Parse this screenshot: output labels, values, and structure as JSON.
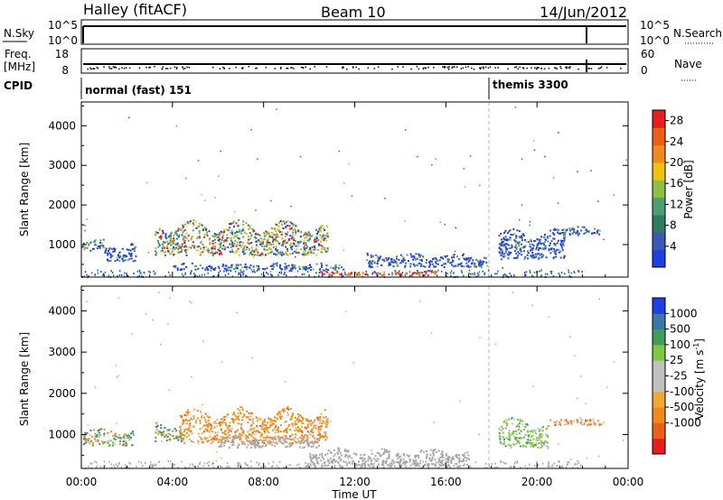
{
  "header": {
    "station": "Halley (fitACF)",
    "beam": "Beam 10",
    "date": "14/Jun/2012"
  },
  "top_panels": {
    "nsky_label": "N.Sky",
    "nsky_ticks": [
      "10^5",
      "10^0"
    ],
    "nsearch_label": "N.Search",
    "nsearch_ticks": [
      "10^5",
      "10^0"
    ],
    "freq_label_1": "Freq.",
    "freq_label_2": "[MHz]",
    "freq_ticks": [
      "18",
      "8"
    ],
    "nave_label": "Nave",
    "nave_ticks": [
      "60",
      "0"
    ],
    "cpid_label": "CPID",
    "cpid_1": "normal (fast) 151",
    "cpid_2": "themis 3300"
  },
  "colors": {
    "power": [
      "#1e3ee8",
      "#3a58b8",
      "#2f7b62",
      "#4f9e72",
      "#8ec044",
      "#f0c20c",
      "#f08a1c",
      "#ee5f16",
      "#e81d1d"
    ],
    "velocity": [
      "#e81d1d",
      "#ee5f16",
      "#f08a1c",
      "#f0a830",
      "#c0c0c0",
      "#c0c0c0",
      "#7ec844",
      "#3f9e5a",
      "#3a78a8",
      "#1e3ee8"
    ],
    "ground_scatter": "#a8a8a8"
  },
  "chart_data": [
    {
      "type": "heatmap",
      "name": "Power",
      "ylabel": "Slant Range [km]",
      "xlabel": "Time UT",
      "xlim_hours": [
        0,
        24
      ],
      "ylim": [
        180,
        4600
      ],
      "yticks": [
        "1000",
        "2000",
        "3000",
        "4000"
      ],
      "xticks": [
        "00:00",
        "04:00",
        "08:00",
        "12:00",
        "16:00",
        "20:00",
        "00:00"
      ],
      "colorbar_label": "Power [dB]",
      "colorbar_ticks": [
        "4",
        "8",
        "12",
        "16",
        "20",
        "24",
        "28"
      ],
      "colorbar_range": [
        0,
        30
      ],
      "marker_time_hours": 18.1,
      "regions": [
        {
          "t0": 0.0,
          "t1": 1.0,
          "r0": 850,
          "r1": 1180,
          "level": "mixed"
        },
        {
          "t0": 1.0,
          "t1": 2.4,
          "r0": 600,
          "r1": 1100,
          "level": "low"
        },
        {
          "t0": 3.2,
          "t1": 10.8,
          "r0": 750,
          "r1": 1650,
          "level": "high"
        },
        {
          "t0": 4.0,
          "t1": 11.5,
          "r0": 380,
          "r1": 560,
          "level": "low"
        },
        {
          "t0": 10.5,
          "t1": 15.5,
          "r0": 240,
          "r1": 360,
          "level": "strong"
        },
        {
          "t0": 12.5,
          "t1": 17.8,
          "r0": 450,
          "r1": 820,
          "level": "low"
        },
        {
          "t0": 18.3,
          "t1": 21.2,
          "r0": 650,
          "r1": 1450,
          "level": "low"
        },
        {
          "t0": 20.5,
          "t1": 22.8,
          "r0": 1250,
          "r1": 1480,
          "level": "low"
        }
      ]
    },
    {
      "type": "heatmap",
      "name": "Velocity",
      "ylabel": "Slant Range [km]",
      "xlabel": "Time UT",
      "xlim_hours": [
        0,
        24
      ],
      "ylim": [
        180,
        4600
      ],
      "yticks": [
        "1000",
        "2000",
        "3000",
        "4000"
      ],
      "xticks": [
        "00:00",
        "04:00",
        "08:00",
        "12:00",
        "16:00",
        "20:00",
        "00:00"
      ],
      "colorbar_label_main": "Velocity  [m s",
      "colorbar_label_sup": "-1",
      "colorbar_label_end": "]",
      "colorbar_ticks": [
        "1000",
        "500",
        "100",
        "25",
        "-25",
        "-100",
        "-500",
        "-1000"
      ],
      "marker_time_hours": 18.1,
      "regions": [
        {
          "t0": 0.0,
          "t1": 2.3,
          "r0": 750,
          "r1": 1200,
          "level": "mixed"
        },
        {
          "t0": 3.2,
          "t1": 4.4,
          "r0": 850,
          "r1": 1350,
          "level": "mixed"
        },
        {
          "t0": 4.3,
          "t1": 10.8,
          "r0": 800,
          "r1": 1700,
          "level": "negative"
        },
        {
          "t0": 6.0,
          "t1": 10.5,
          "r0": 700,
          "r1": 1000,
          "level": "gs"
        },
        {
          "t0": 10.0,
          "t1": 17.0,
          "r0": 240,
          "r1": 700,
          "level": "gs"
        },
        {
          "t0": 18.3,
          "t1": 20.5,
          "r0": 700,
          "r1": 1450,
          "level": "positive"
        },
        {
          "t0": 20.5,
          "t1": 22.8,
          "r0": 1250,
          "r1": 1450,
          "level": "negneg"
        }
      ]
    }
  ]
}
